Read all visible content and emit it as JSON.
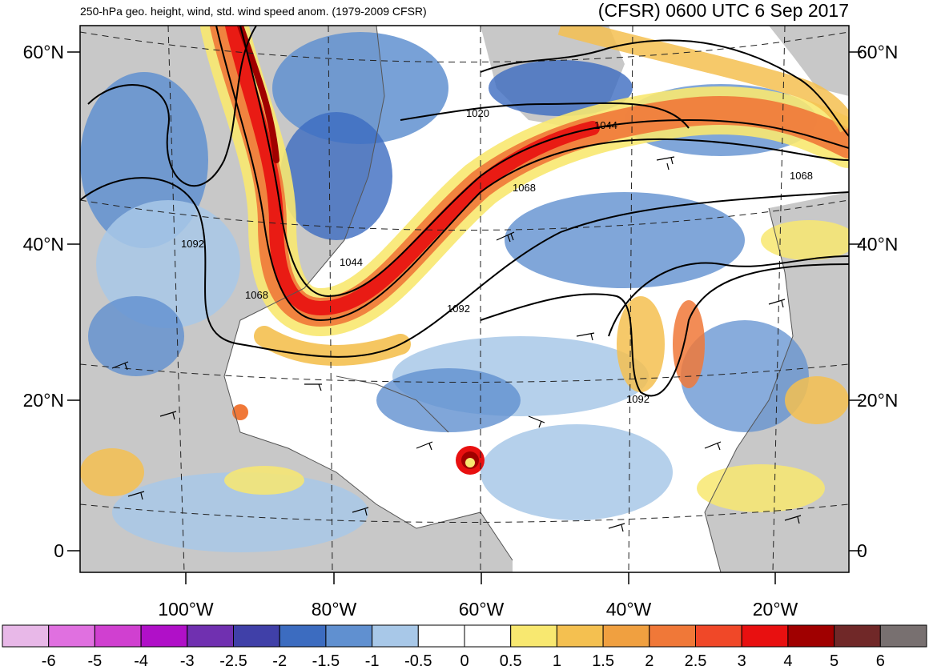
{
  "header": {
    "left_title": "250-hPa geo. height, wind, std. wind speed anom. (1979-2009 CFSR)",
    "right_title": "(CFSR) 0600 UTC 6 Sep 2017"
  },
  "map": {
    "latitude_labels": [
      "60°N",
      "40°N",
      "20°N",
      "0"
    ],
    "longitude_labels": [
      "100°W",
      "80°W",
      "60°W",
      "40°W",
      "20°W"
    ],
    "contour_labels": [
      "1020",
      "1044",
      "1068",
      "1092",
      "1044",
      "1068",
      "1092",
      "1068",
      "1092"
    ],
    "colors": {
      "land": "#c8c8c8",
      "ocean": "#ffffff",
      "coast": "#555555",
      "contour": "#000000"
    }
  },
  "colorbar": {
    "labels": [
      "-6",
      "-5",
      "-4",
      "-3",
      "-2.5",
      "-2",
      "-1.5",
      "-1",
      "-0.5",
      "0",
      "0.5",
      "1",
      "1.5",
      "2",
      "2.5",
      "3",
      "4",
      "5",
      "6"
    ],
    "colors": [
      "#e8b8e8",
      "#e070e0",
      "#d040d0",
      "#b010c8",
      "#7030b0",
      "#4040a8",
      "#3c6cc0",
      "#6090d0",
      "#a8c8e8",
      "#ffffff",
      "#ffffff",
      "#f8e870",
      "#f4c050",
      "#f0a040",
      "#f07838",
      "#f04828",
      "#e81010",
      "#a00000",
      "#702828",
      "#787070"
    ]
  }
}
